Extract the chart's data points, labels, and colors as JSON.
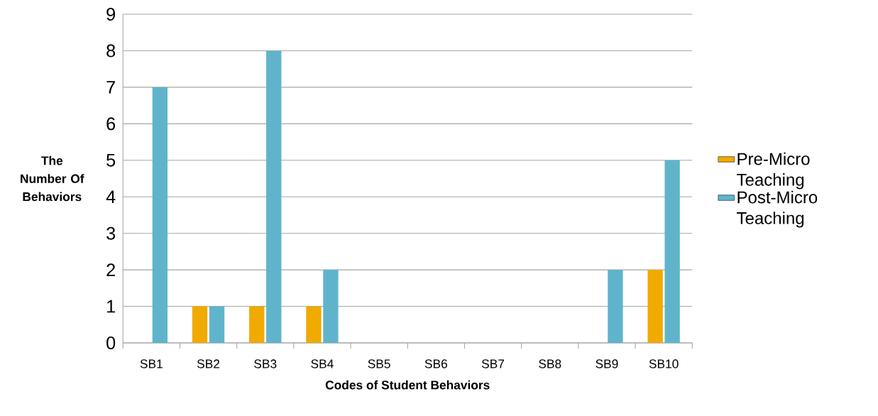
{
  "chart_data": {
    "type": "bar",
    "xlabel": "Codes of Student Behaviors",
    "ylabel": "The Number Of Behaviors",
    "categories": [
      "SB1",
      "SB2",
      "SB3",
      "SB4",
      "SB5",
      "SB6",
      "SB7",
      "SB8",
      "SB9",
      "SB10"
    ],
    "series": [
      {
        "name": "Pre-Micro Teaching",
        "color": "#f0aa00",
        "values": [
          0,
          1,
          1,
          1,
          0,
          0,
          0,
          0,
          0,
          2
        ]
      },
      {
        "name": "Post-Micro Teaching",
        "color": "#5fb4cc",
        "values": [
          7,
          1,
          8,
          2,
          0,
          0,
          0,
          0,
          2,
          5
        ]
      }
    ],
    "ylim": [
      0,
      9
    ],
    "yticks": [
      0,
      1,
      2,
      3,
      4,
      5,
      6,
      7,
      8,
      9
    ],
    "grid": "y",
    "legend": "right"
  }
}
